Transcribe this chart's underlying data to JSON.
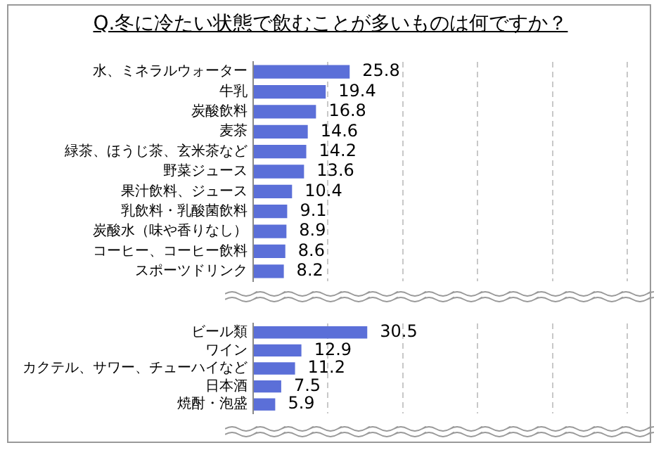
{
  "chart_data": [
    {
      "type": "bar",
      "orientation": "horizontal",
      "title": "Q.冬に冷たい状態で飲むことが多いものは何ですか？",
      "categories": [
        "水、ミネラルウォーター",
        "牛乳",
        "炭酸飲料",
        "麦茶",
        "緑茶、ほうじ茶、玄米茶など",
        "野菜ジュース",
        "果汁飲料、ジュース",
        "乳飲料・乳酸菌飲料",
        "炭酸水（味や香りなし）",
        "コーヒー、コーヒー飲料",
        "スポーツドリンク"
      ],
      "values": [
        25.8,
        19.4,
        16.8,
        14.6,
        14.2,
        13.6,
        10.4,
        9.1,
        8.9,
        8.6,
        8.2
      ],
      "color": "#5b6fd8",
      "xlim": [
        0,
        100
      ],
      "xticks": [
        {
          "value": 0,
          "label": null
        },
        {
          "value": 20,
          "label": null
        },
        {
          "value": 40,
          "label": null
        },
        {
          "value": 60,
          "label": null
        },
        {
          "value": 80,
          "label": null
        },
        {
          "value": 100,
          "label": null
        }
      ],
      "grid": "x",
      "tick_labels": "y",
      "data_labels": true,
      "legend": false
    },
    {
      "type": "bar",
      "orientation": "horizontal",
      "categories": [
        "ビール類",
        "ワイン",
        "カクテル、サワー、チューハイなど",
        "日本酒",
        "焼酎・泡盛"
      ],
      "values": [
        30.5,
        12.9,
        11.2,
        7.5,
        5.9
      ],
      "color": "#5b6fd8",
      "xlim": [
        0,
        100
      ],
      "xticks": [
        {
          "value": 0,
          "label": null
        },
        {
          "value": 20,
          "label": null
        },
        {
          "value": 40,
          "label": null
        },
        {
          "value": 60,
          "label": null
        },
        {
          "value": 80,
          "label": null
        },
        {
          "value": 100,
          "label": null
        }
      ],
      "grid": "x",
      "tick_labels": "y",
      "data_labels": true,
      "legend": false
    }
  ]
}
